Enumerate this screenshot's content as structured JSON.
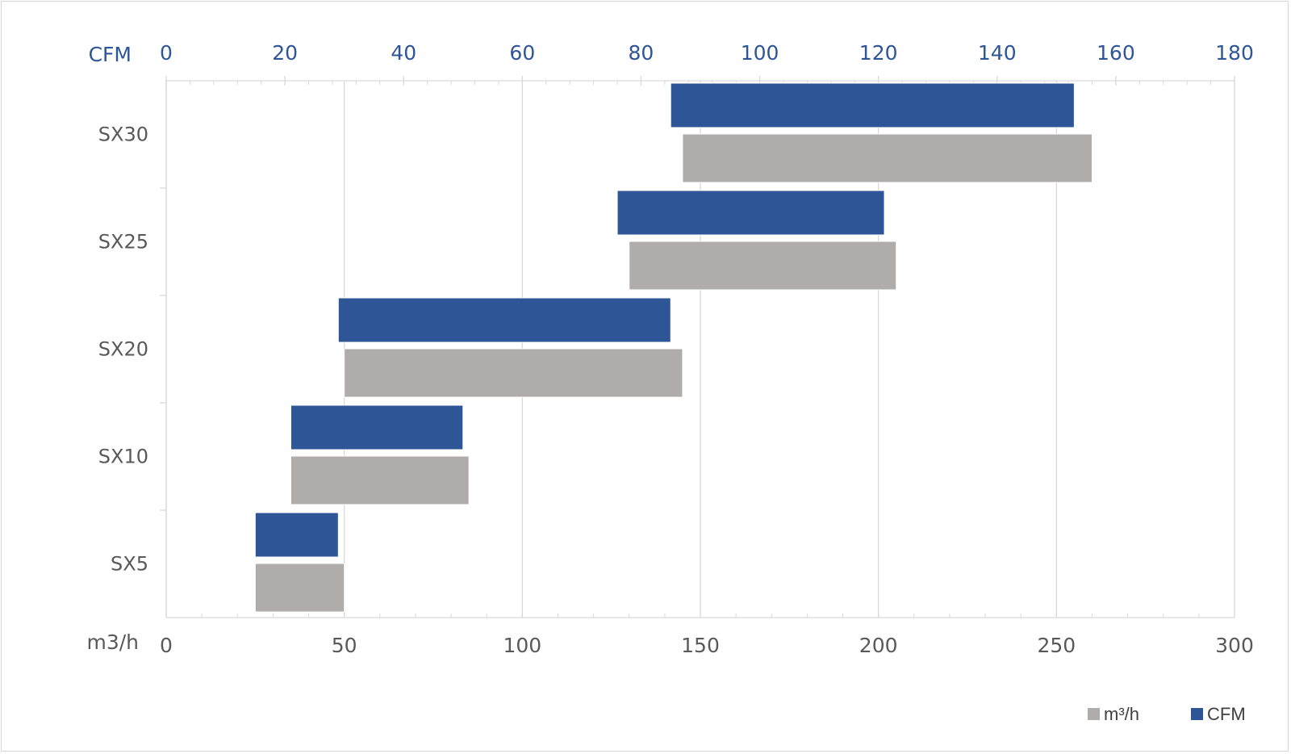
{
  "chart_data": {
    "type": "bar",
    "orientation": "horizontal-range",
    "title": "",
    "categories": [
      "SX30",
      "SX25",
      "SX20",
      "SX10",
      "SX5"
    ],
    "series": [
      {
        "name": "CFM",
        "axis": "top",
        "color": "#2e5596",
        "ranges": [
          [
            85,
            153
          ],
          [
            76,
            121
          ],
          [
            29,
            85
          ],
          [
            21,
            50
          ],
          [
            15,
            29
          ]
        ]
      },
      {
        "name": "m³/h",
        "axis": "bottom",
        "color": "#afacab",
        "ranges": [
          [
            145,
            260
          ],
          [
            130,
            205
          ],
          [
            50,
            145
          ],
          [
            35,
            85
          ],
          [
            25,
            50
          ]
        ]
      }
    ],
    "top_axis": {
      "label": "CFM",
      "range": [
        0,
        180
      ],
      "ticks": [
        "0",
        "20",
        "40",
        "60",
        "80",
        "100",
        "120",
        "140",
        "160",
        "180"
      ]
    },
    "bottom_axis": {
      "label": "m3/h",
      "range": [
        0,
        300
      ],
      "ticks": [
        "0",
        "50",
        "100",
        "150",
        "200",
        "250",
        "300"
      ]
    },
    "grid": true,
    "legend": {
      "position": "bottom-right",
      "items": [
        {
          "label": "m³/h",
          "color": "#afacab"
        },
        {
          "label": "CFM",
          "color": "#2e5596"
        }
      ]
    }
  }
}
